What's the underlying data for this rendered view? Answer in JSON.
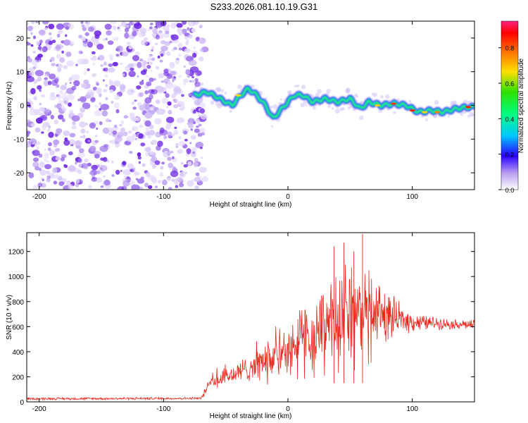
{
  "title": "S233.2026.081.10.19.G31",
  "colorbar": {
    "label": "Normalized spectral amplitude",
    "ticks": [
      "0.0",
      "0.2",
      "0.4",
      "0.6",
      "0.8"
    ],
    "min": 0,
    "max": 0.95
  },
  "chart_data": [
    {
      "type": "heatmap",
      "xlabel": "Height of straight line (km)",
      "ylabel": "Frequency (Hz)",
      "xlim": [
        -210,
        150
      ],
      "ylim": [
        -25,
        25
      ],
      "xticks": [
        -200,
        -100,
        0,
        100
      ],
      "xticklabels": [
        "-200",
        "-100",
        "0",
        "100"
      ],
      "yticks": [
        -20,
        -10,
        0,
        10,
        20
      ],
      "yticklabels": [
        "-20",
        "-10",
        "0",
        "10",
        "20"
      ],
      "noise_region_x": [
        -210,
        -70
      ],
      "ridge_x": [
        -75,
        -65,
        -55,
        -45,
        -38,
        -32,
        -25,
        -18,
        -12,
        -5,
        0,
        5,
        12,
        20,
        30,
        40,
        50,
        58,
        65,
        75,
        85,
        95,
        105,
        115,
        125,
        135,
        145,
        150
      ],
      "ridge_f": [
        3,
        4,
        2,
        0,
        3,
        5,
        3,
        0,
        -4,
        -1,
        1,
        3,
        3,
        1,
        2,
        1,
        2,
        -1,
        1,
        0,
        0.5,
        0,
        -2,
        -1.5,
        -2,
        -1,
        -0.5,
        -0.5
      ]
    },
    {
      "type": "line",
      "xlabel": "Height of straight line (km)",
      "ylabel": "SNR (10 * v/v)",
      "xlim": [
        -210,
        150
      ],
      "ylim": [
        0,
        1350
      ],
      "xticks": [
        -200,
        -100,
        0,
        100
      ],
      "xticklabels": [
        "-200",
        "-100",
        "0",
        "100"
      ],
      "yticks": [
        0,
        200,
        400,
        600,
        800,
        1000,
        1200
      ],
      "yticklabels": [
        "0",
        "200",
        "400",
        "600",
        "800",
        "1000",
        "1200"
      ],
      "color": "#e8271d",
      "envelope_x": [
        -210,
        -70,
        -62,
        -55,
        -40,
        -30,
        -20,
        -10,
        0,
        10,
        20,
        30,
        40,
        50,
        60,
        70,
        80,
        90,
        100,
        110,
        120,
        130,
        140,
        150
      ],
      "envelope_y": [
        25,
        28,
        150,
        180,
        230,
        280,
        320,
        360,
        430,
        480,
        540,
        600,
        660,
        680,
        700,
        720,
        680,
        660,
        640,
        630,
        630,
        620,
        620,
        610
      ],
      "spread": [
        10,
        10,
        60,
        70,
        90,
        110,
        140,
        170,
        200,
        230,
        270,
        300,
        330,
        340,
        330,
        300,
        200,
        120,
        80,
        60,
        50,
        40,
        40,
        40
      ],
      "peaks": [
        {
          "x": 60,
          "y": 1340
        },
        {
          "x": 37,
          "y": 1240
        },
        {
          "x": 45,
          "y": 1270
        },
        {
          "x": 53,
          "y": 1200
        }
      ]
    }
  ]
}
